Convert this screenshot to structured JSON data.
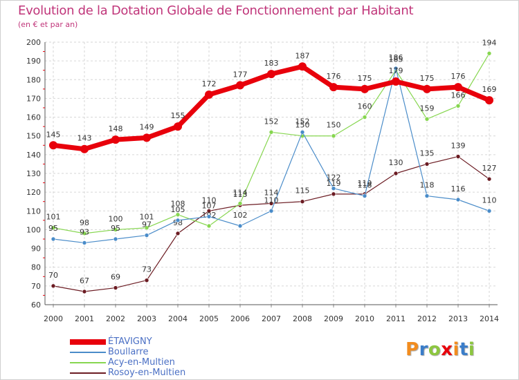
{
  "chart_data": {
    "type": "line",
    "title": "Evolution de la Dotation Globale de Fonctionnement par Habitant",
    "subtitle": "(en € et par an)",
    "xlabel": "",
    "ylabel": "",
    "categories": [
      "2000",
      "2001",
      "2002",
      "2003",
      "2004",
      "2005",
      "2006",
      "2007",
      "2008",
      "2009",
      "2010",
      "2011",
      "2012",
      "2013",
      "2014"
    ],
    "ylim": [
      60,
      200
    ],
    "yticks": [
      60,
      70,
      80,
      90,
      100,
      110,
      120,
      130,
      140,
      150,
      160,
      170,
      180,
      190,
      200
    ],
    "grid": true,
    "legend_position": "bottom-left",
    "series": [
      {
        "name": "ÉTAVIGNY",
        "color": "#e8000b",
        "values": [
          145,
          143,
          148,
          149,
          155,
          172,
          177,
          183,
          187,
          176,
          175,
          179,
          175,
          176,
          169
        ]
      },
      {
        "name": "Boullarre",
        "color": "#4a8cc9",
        "values": [
          95,
          93,
          95,
          97,
          105,
          107,
          102,
          110,
          152,
          122,
          118,
          186,
          118,
          116,
          110
        ]
      },
      {
        "name": "Acy-en-Multien",
        "color": "#86d64f",
        "values": [
          101,
          98,
          100,
          101,
          108,
          102,
          114,
          152,
          150,
          150,
          160,
          185,
          159,
          166,
          194
        ]
      },
      {
        "name": "Rosoy-en-Multien",
        "color": "#6b1b22",
        "values": [
          70,
          67,
          69,
          73,
          98,
          110,
          113,
          114,
          115,
          119,
          119,
          130,
          135,
          139,
          127
        ]
      }
    ]
  },
  "logo": {
    "letters": [
      "P",
      "r",
      "o",
      "x",
      "i",
      "t",
      "i"
    ],
    "colors": [
      "#f28c1e",
      "#3a7dc9",
      "#8cc63f",
      "#e8000b",
      "#f28c1e",
      "#3a7dc9",
      "#8cc63f"
    ]
  }
}
